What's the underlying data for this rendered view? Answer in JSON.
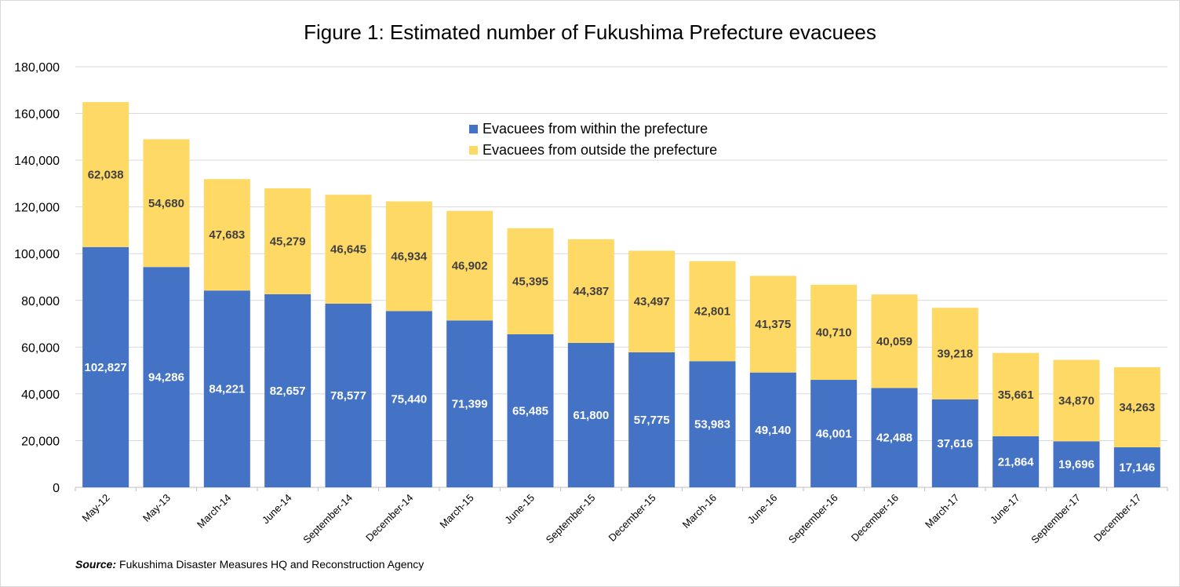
{
  "colors": {
    "within": "#4472c4",
    "outside": "#ffd966",
    "grid": "#d9d9d9",
    "label_within": "#ffffff",
    "label_outside": "#404040"
  },
  "source": {
    "label": "Source:",
    "text": "Fukushima Disaster Measures HQ and Reconstruction Agency"
  },
  "chart_data": {
    "type": "bar",
    "stacked": true,
    "title": "Figure 1: Estimated number of Fukushima Prefecture evacuees",
    "categories": [
      "May-12",
      "May-13",
      "March-14",
      "June-14",
      "September-14",
      "December-14",
      "March-15",
      "June-15",
      "September-15",
      "December-15",
      "March-16",
      "June-16",
      "September-16",
      "December-16",
      "March-17",
      "June-17",
      "September-17",
      "December-17"
    ],
    "series": [
      {
        "name": "Evacuees from within the prefecture",
        "values": [
          102827,
          94286,
          84221,
          82657,
          78577,
          75440,
          71399,
          65485,
          61800,
          57775,
          53983,
          49140,
          46001,
          42488,
          37616,
          21864,
          19696,
          17146
        ]
      },
      {
        "name": "Evacuees from outside the prefecture",
        "values": [
          62038,
          54680,
          47683,
          45279,
          46645,
          46934,
          46902,
          45395,
          44387,
          43497,
          42801,
          41375,
          40710,
          40059,
          39218,
          35661,
          34870,
          34263
        ]
      }
    ],
    "data_labels": {
      "within": [
        "102,827",
        "94,286",
        "84,221",
        "82,657",
        "78,577",
        "75,440",
        "71,399",
        "65,485",
        "61,800",
        "57,775",
        "53,983",
        "49,140",
        "46,001",
        "42,488",
        "37,616",
        "21,864",
        "19,696",
        "17,146"
      ],
      "outside": [
        "62,038",
        "54,680",
        "47,683",
        "45,279",
        "46,645",
        "46,934",
        "46,902",
        "45,395",
        "44,387",
        "43,497",
        "42,801",
        "41,375",
        "40,710",
        "40,059",
        "39,218",
        "35,661",
        "34,870",
        "34,263"
      ]
    },
    "y_ticks": [
      0,
      20000,
      40000,
      60000,
      80000,
      100000,
      120000,
      140000,
      160000,
      180000
    ],
    "y_tick_labels": [
      "0",
      "20,000",
      "40,000",
      "60,000",
      "80,000",
      "100,000",
      "120,000",
      "140,000",
      "160,000",
      "180,000"
    ],
    "ylim": [
      0,
      180000
    ],
    "xlabel": "",
    "ylabel": "",
    "grid": true,
    "legend_position": "top-center"
  }
}
